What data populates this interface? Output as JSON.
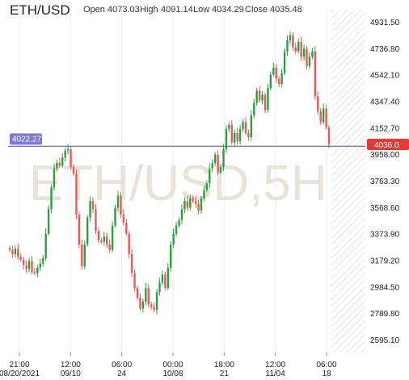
{
  "header": {
    "symbol": "ETH/USD",
    "open_label": "Open",
    "open_value": "4073.03",
    "high_label": "High",
    "high_value": "4091.14",
    "low_label": "Low",
    "low_value": "4034.29",
    "close_label": "Close",
    "close_value": "4035.48"
  },
  "watermark": "ETH/USD,5H",
  "crosshair": {
    "value": 4022.27,
    "label": "4022.27"
  },
  "last_price": {
    "value": 4036.0,
    "label": "4036.0"
  },
  "colors": {
    "up": "#2e9e3e",
    "down": "#e55b5b",
    "crosshair": "#5b5bd6",
    "last_price": "#e53935"
  },
  "chart_data": {
    "type": "candlestick",
    "ylim": [
      2500,
      5000
    ],
    "yticks": [
      2595.1,
      2789.8,
      2984.5,
      3179.2,
      3373.9,
      3568.6,
      3763.3,
      3958.0,
      4152.7,
      4347.4,
      4542.1,
      4736.8,
      4931.5
    ],
    "ytick_labels": [
      "2595.10",
      "2789.80",
      "2984.50",
      "3179.20",
      "3373.90",
      "3568.60",
      "3763.30",
      "3958.00",
      "4152.70",
      "4347.40",
      "4542.10",
      "4736.80",
      "4931.50"
    ],
    "x_ticks": [
      {
        "top": "21:00",
        "bottom": "08/20/2021"
      },
      {
        "top": "12:00",
        "bottom": "09/10"
      },
      {
        "top": "06:00",
        "bottom": "24"
      },
      {
        "top": "00:00",
        "bottom": "10/08"
      },
      {
        "top": "18:00",
        "bottom": "21"
      },
      {
        "top": "12:00",
        "bottom": "11/04"
      },
      {
        "top": "06:00",
        "bottom": "18"
      }
    ],
    "close_series": [
      3260,
      3230,
      3270,
      3210,
      3190,
      3150,
      3120,
      3180,
      3100,
      3090,
      3130,
      3160,
      3200,
      3380,
      3560,
      3720,
      3860,
      3900,
      3880,
      3940,
      3990,
      4000,
      3870,
      3820,
      3520,
      3300,
      3140,
      3300,
      3500,
      3620,
      3560,
      3400,
      3330,
      3320,
      3360,
      3300,
      3260,
      3440,
      3570,
      3660,
      3520,
      3460,
      3380,
      3230,
      3090,
      2980,
      2910,
      2830,
      2880,
      2980,
      2860,
      2840,
      2820,
      2950,
      3020,
      3080,
      2980,
      3130,
      3300,
      3380,
      3440,
      3480,
      3560,
      3620,
      3570,
      3640,
      3620,
      3600,
      3550,
      3640,
      3700,
      3750,
      3860,
      3900,
      3960,
      3830,
      3870,
      4000,
      4150,
      4180,
      4050,
      4120,
      4060,
      4150,
      4200,
      4120,
      4090,
      4250,
      4340,
      4430,
      4360,
      4400,
      4290,
      4450,
      4550,
      4600,
      4520,
      4480,
      4560,
      4720,
      4800,
      4840,
      4750,
      4720,
      4790,
      4680,
      4740,
      4610,
      4680,
      4720,
      4390,
      4280,
      4200,
      4300,
      4160,
      4036
    ]
  }
}
